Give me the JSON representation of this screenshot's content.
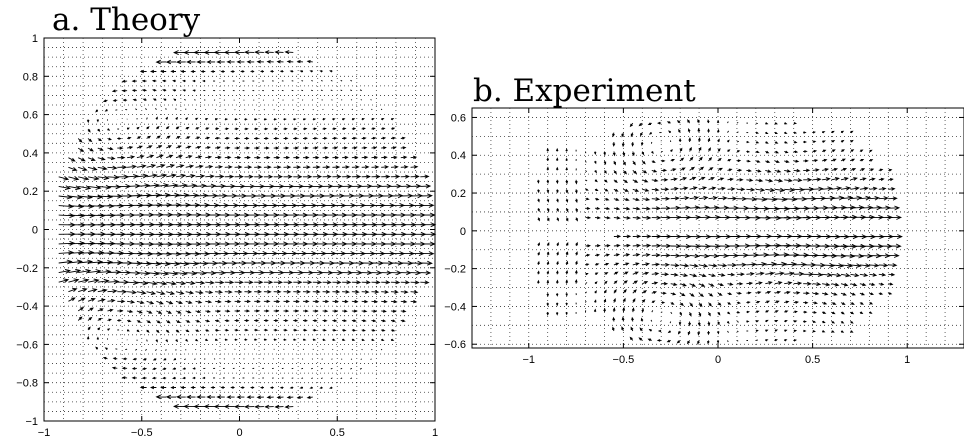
{
  "chart_data": [
    {
      "type": "quiver",
      "title": "a. Theory",
      "xlim": [
        -1,
        1
      ],
      "ylim": [
        -1,
        1
      ],
      "xticks": [
        -1,
        -0.5,
        0,
        0.5,
        1
      ],
      "yticks": [
        -1,
        -0.8,
        -0.6,
        -0.4,
        -0.2,
        0,
        0.2,
        0.4,
        0.6,
        0.8,
        1
      ],
      "xtick_labels": [
        "−1",
        "−0.5",
        "0",
        "0.5",
        "1"
      ],
      "ytick_labels": [
        "−1",
        "−0.8",
        "−0.6",
        "−0.4",
        "−0.2",
        "0",
        "0.2",
        "0.4",
        "0.6",
        "0.8",
        "1"
      ],
      "grid": true,
      "domain": "disk of radius 1",
      "flow": "strong rightward jet along y = 0; reversed leftward flow near top and bottom edges; recirculating vortices near (-0.65, 0.45) and (-0.65, -0.45)"
    },
    {
      "type": "quiver",
      "title": "b. Experiment",
      "xlim": [
        -1.3,
        1.3
      ],
      "ylim": [
        -0.62,
        0.65
      ],
      "xticks": [
        -1,
        -0.5,
        0,
        0.5,
        1
      ],
      "yticks": [
        -0.6,
        -0.4,
        -0.2,
        0,
        0.2,
        0.4,
        0.6
      ],
      "xtick_labels": [
        "−1",
        "−0.5",
        "0",
        "0.5",
        "1"
      ],
      "ytick_labels": [
        "−0.6",
        "−0.4",
        "−0.2",
        "0",
        "0.2",
        "0.4",
        "0.6"
      ],
      "grid": true,
      "data_extent": {
        "x": [
          -0.95,
          0.9
        ],
        "y": [
          -0.6,
          0.6
        ]
      },
      "flow": "rightward flow near y = 0 strongest for x > 0; counter-rotating vortices centred near (-0.3, 0.45) and (-0.3, -0.45)"
    }
  ]
}
